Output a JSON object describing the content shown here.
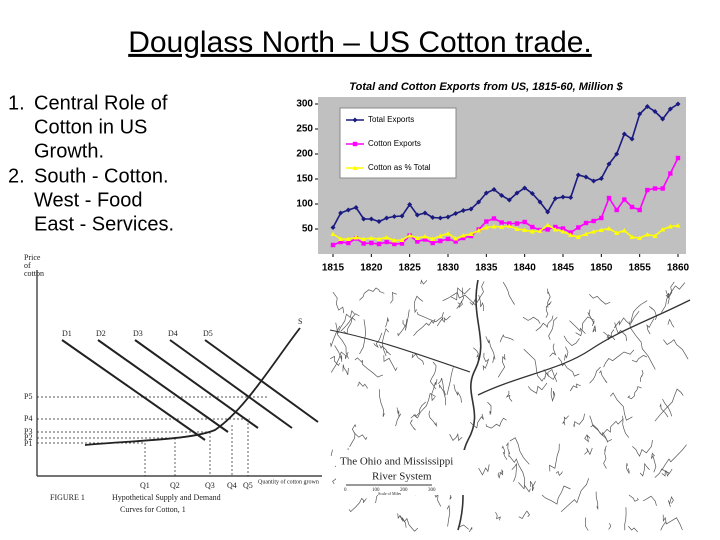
{
  "title": "Douglass North – US Cotton trade.",
  "bullets": [
    {
      "number": "1.",
      "lines": [
        "Central Role of",
        "Cotton in US",
        "Growth."
      ]
    },
    {
      "number": "2.",
      "lines": [
        "South - Cotton.",
        "West - Food",
        "East - Services."
      ]
    }
  ],
  "chart_data": {
    "type": "line",
    "title": "Total and Cotton Exports from US, 1815-60, Million $",
    "x": [
      1815,
      1816,
      1817,
      1818,
      1819,
      1820,
      1821,
      1822,
      1823,
      1824,
      1825,
      1826,
      1827,
      1828,
      1829,
      1830,
      1831,
      1832,
      1833,
      1834,
      1835,
      1836,
      1837,
      1838,
      1839,
      1840,
      1841,
      1842,
      1843,
      1844,
      1845,
      1846,
      1847,
      1848,
      1849,
      1850,
      1851,
      1852,
      1853,
      1854,
      1855,
      1856,
      1857,
      1858,
      1859,
      1860
    ],
    "series": [
      {
        "name": "Total Exports",
        "color": "#1a1a80",
        "marker": "diamond",
        "values": [
          53,
          82,
          88,
          93,
          70,
          70,
          65,
          72,
          75,
          76,
          99,
          78,
          82,
          73,
          72,
          74,
          81,
          87,
          90,
          104,
          122,
          129,
          117,
          108,
          122,
          132,
          121,
          104,
          84,
          111,
          114,
          113,
          158,
          154,
          146,
          151,
          180,
          200,
          240,
          230,
          280,
          295,
          285,
          270,
          290,
          300
        ]
      },
      {
        "name": "Cotton Exports",
        "color": "#ff00ff",
        "marker": "square",
        "values": [
          18,
          24,
          22,
          31,
          21,
          22,
          20,
          24,
          20,
          21,
          37,
          25,
          29,
          22,
          26,
          30,
          25,
          32,
          36,
          49,
          65,
          71,
          63,
          61,
          61,
          64,
          54,
          48,
          49,
          54,
          51,
          43,
          53,
          62,
          66,
          72,
          112,
          88,
          109,
          94,
          88,
          128,
          131,
          131,
          161,
          192
        ]
      },
      {
        "name": "Cotton as % Total",
        "color": "#ffff00",
        "marker": "triangle",
        "values": [
          40,
          30,
          30,
          33,
          30,
          32,
          30,
          33,
          27,
          28,
          37,
          32,
          35,
          30,
          36,
          41,
          31,
          37,
          40,
          47,
          53,
          55,
          54,
          56,
          50,
          48,
          45,
          46,
          58,
          49,
          45,
          38,
          34,
          40,
          45,
          48,
          51,
          42,
          47,
          34,
          32,
          39,
          36,
          49,
          55,
          57
        ]
      }
    ],
    "xlim": [
      1815,
      1860
    ],
    "xticks": [
      1815,
      1820,
      1825,
      1830,
      1835,
      1840,
      1845,
      1850,
      1855,
      1860
    ],
    "ylim": [
      0,
      314
    ],
    "yticks": [
      50,
      100,
      150,
      200,
      250,
      300
    ],
    "background": "#c0c0c0",
    "legend": "top-left"
  },
  "figure": {
    "y_label": [
      "Price",
      "of",
      "cotton"
    ],
    "supply": "S",
    "demand": [
      "D1",
      "D2",
      "D3",
      "D4",
      "D5"
    ],
    "prices": [
      "P5",
      "P4",
      "P3",
      "P2",
      "P1"
    ],
    "quantities": [
      "Q1",
      "Q2",
      "Q3",
      "Q4",
      "Q5"
    ],
    "x_label": "Quantity of cotton grown",
    "caption": [
      "FIGURE 1",
      "Hypothetical Supply and Demand",
      "Curves for Cotton, 1"
    ]
  },
  "map": {
    "title": [
      "The Ohio and Mississippi",
      "River System"
    ],
    "scale": [
      "0",
      "100",
      "200",
      "300"
    ],
    "scale_label": "Scale of Miles"
  }
}
